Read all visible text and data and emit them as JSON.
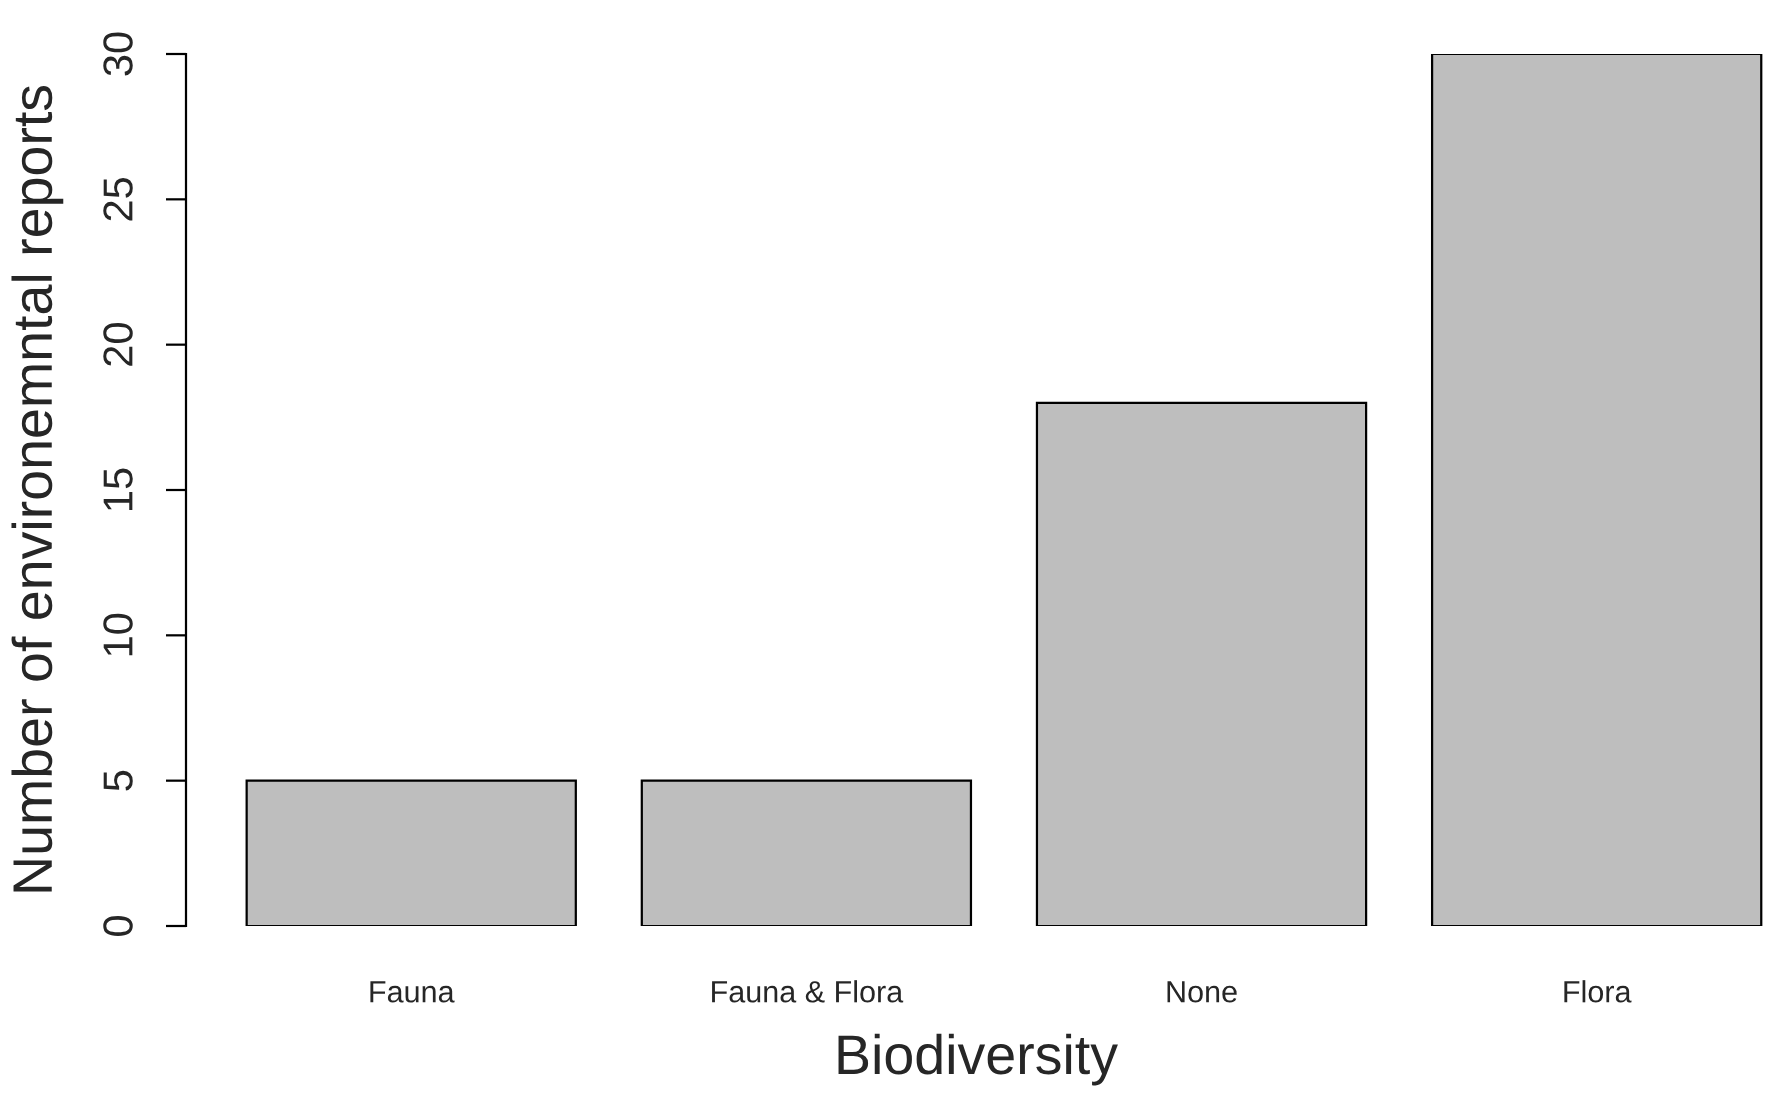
{
  "chart_data": {
    "type": "bar",
    "xlabel": "Biodiversity",
    "ylabel": "Number of environemntal reports",
    "categories": [
      "Fauna",
      "Fauna & Flora",
      "None",
      "Flora"
    ],
    "values": [
      5,
      5,
      18,
      30
    ],
    "color": "#bebebe",
    "ylim": [
      0,
      30
    ],
    "yticks": [
      0,
      5,
      10,
      15,
      20,
      25,
      30
    ]
  }
}
